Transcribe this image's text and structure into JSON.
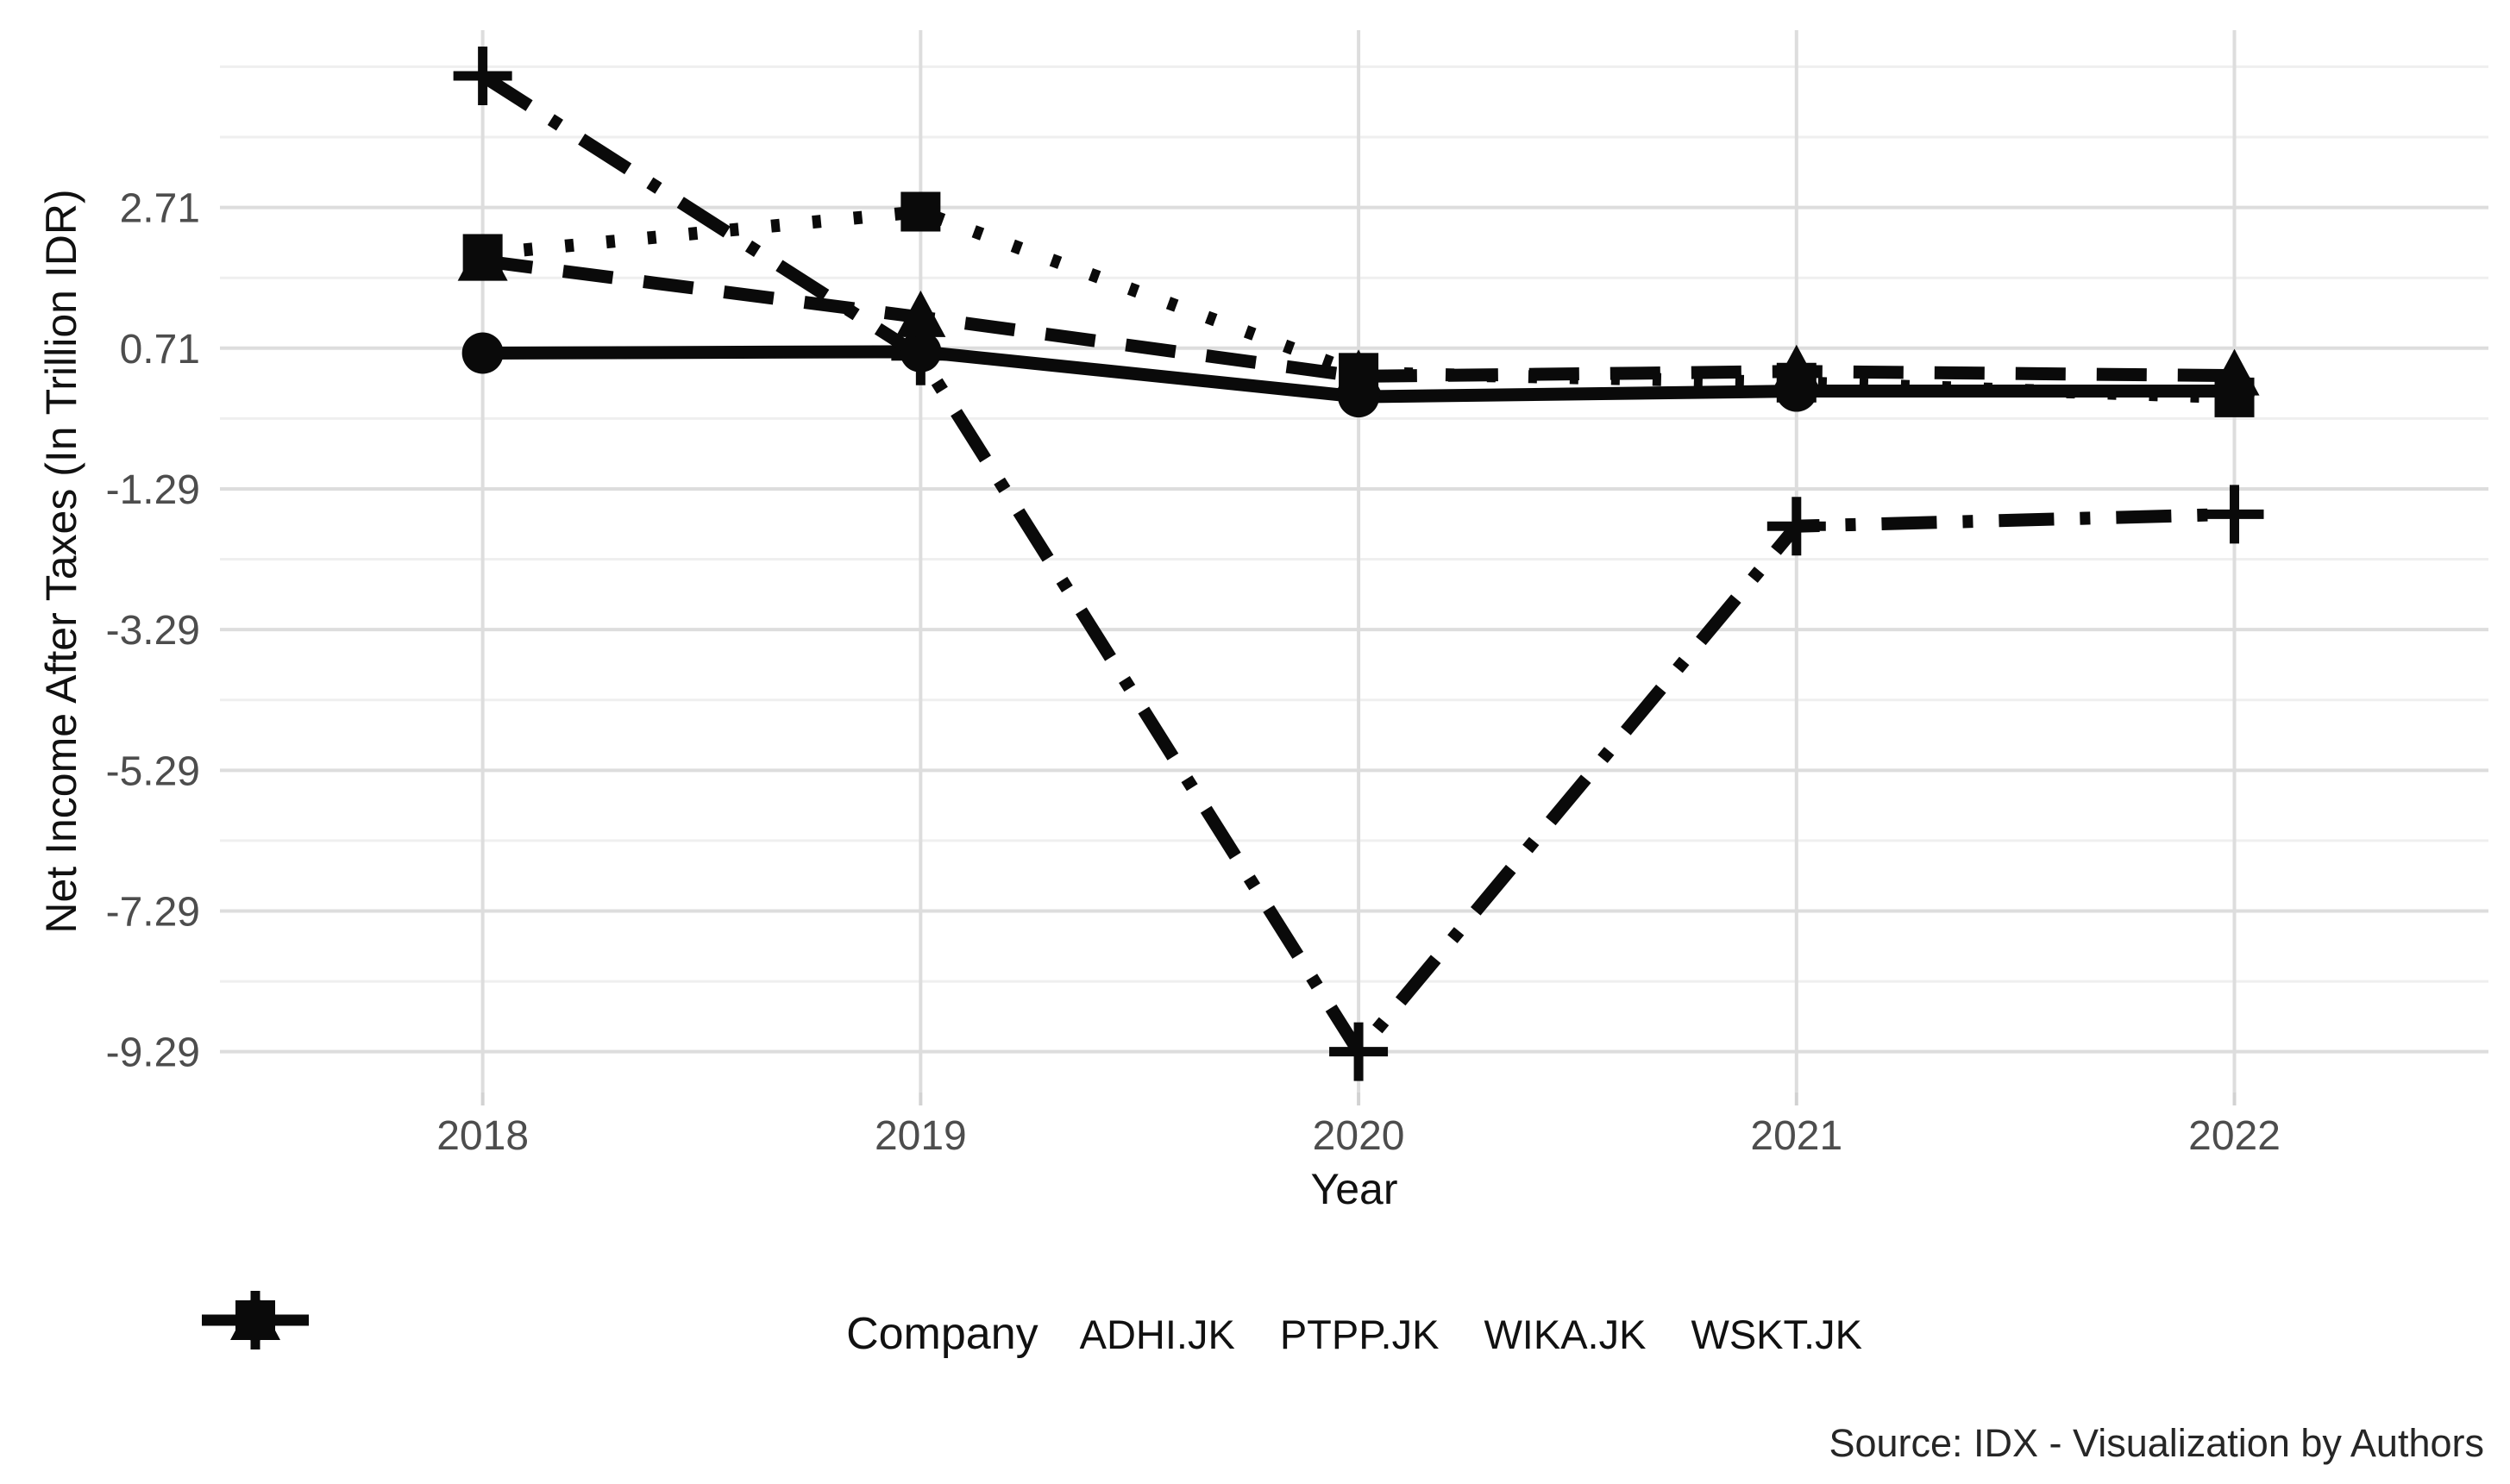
{
  "chart_data": {
    "type": "line",
    "title": "",
    "xlabel": "Year",
    "ylabel": "Net Income After Taxes (In Trillion IDR)",
    "x": [
      2018,
      2019,
      2020,
      2021,
      2022
    ],
    "xlim": [
      2017.4,
      2022.58
    ],
    "ylim": [
      -9.87,
      5.23
    ],
    "y_ticks": [
      2.71,
      0.71,
      -1.29,
      -3.29,
      -5.29,
      -7.29,
      -9.29
    ],
    "y_minor_ticks": [
      4.71,
      3.71,
      1.71,
      -0.29,
      -2.29,
      -4.29,
      -6.29,
      -8.29
    ],
    "grid": "horizontal major+minor, vertical at years, light gray on white",
    "legend_position": "bottom",
    "legend_title": "Company",
    "series": [
      {
        "name": "ADHI.JK",
        "marker": "circle",
        "linestyle": "solid",
        "values": [
          0.64,
          0.66,
          0.02,
          0.1,
          0.1
        ]
      },
      {
        "name": "PTPP.JK",
        "marker": "triangle",
        "linestyle": "dashed",
        "values": [
          1.95,
          1.15,
          0.31,
          0.38,
          0.32
        ]
      },
      {
        "name": "WIKA.JK",
        "marker": "square",
        "linestyle": "dotted",
        "values": [
          2.05,
          2.65,
          0.36,
          0.22,
          0.01
        ]
      },
      {
        "name": "WSKT.JK",
        "marker": "plus",
        "linestyle": "dashdot",
        "values": [
          4.58,
          0.6,
          -9.29,
          -1.82,
          -1.65
        ]
      }
    ],
    "source_note": "Source: IDX - Visualization by Authors"
  },
  "colors": {
    "series": "#0a0a0a",
    "grid_major": "#dddddd",
    "grid_minor": "#efefef",
    "tick_mark": "#d2d2d2",
    "tick_label": "#4d4d4d",
    "text": "#111111",
    "background": "#ffffff"
  }
}
